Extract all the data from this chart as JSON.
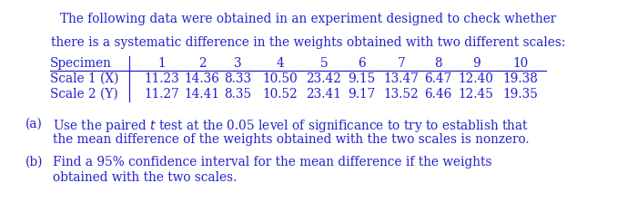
{
  "title_line1": "The following data were obtained in an experiment designed to check whether",
  "title_line2": "there is a systematic difference in the weights obtained with two different scales:",
  "specimen_label": "Specimen",
  "specimen_nums": [
    "1",
    "2",
    "3",
    "4",
    "5",
    "6",
    "7",
    "8",
    "9",
    "10"
  ],
  "scale1_label": "Scale 1 (X)",
  "scale1_values": [
    "11.23",
    "14.36",
    "8.33",
    "10.50",
    "23.42",
    "9.15",
    "13.47",
    "6.47",
    "12.40",
    "19.38"
  ],
  "scale2_label": "Scale 2 (Y)",
  "scale2_values": [
    "11.27",
    "14.41",
    "8.35",
    "10.52",
    "23.41",
    "9.17",
    "13.52",
    "6.46",
    "12.45",
    "19.35"
  ],
  "part_a_label": "(a)",
  "part_a_line1": "Use the paired $t$ test at the 0.05 level of significance to try to establish that",
  "part_a_line2": "the mean difference of the weights obtained with the two scales is nonzero.",
  "part_b_label": "(b)",
  "part_b_line1": "Find a 95% confidence interval for the mean difference if the weights",
  "part_b_line2": "obtained with the two scales.",
  "text_color": "#2222cc",
  "bg_color": "#ffffff",
  "font_size": 9.8
}
